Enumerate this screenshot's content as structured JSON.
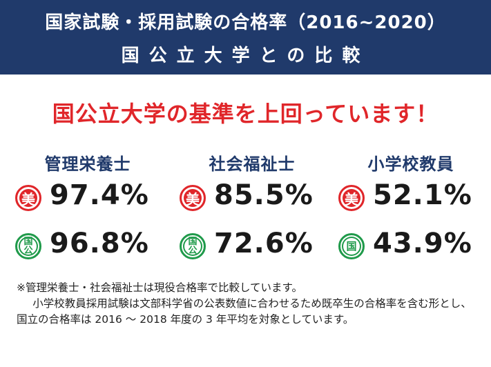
{
  "header": {
    "title_line1": "国家試験・採用試験の合格率（2016~2020）",
    "title_line2": "国公立大学との比較"
  },
  "headline": "国公立大学の基準を上回っています！",
  "colors": {
    "navy": "#203a6b",
    "red": "#e0262a",
    "green": "#1f9a4a"
  },
  "badges": {
    "bi": "美",
    "koku_top": "国",
    "koku_bottom": "公",
    "koku_single": "国"
  },
  "columns": [
    {
      "title": "管理栄養士",
      "bi_value": "97.4%",
      "koku_value": "96.8%"
    },
    {
      "title": "社会福祉士",
      "bi_value": "85.5%",
      "koku_value": "72.6%"
    },
    {
      "title": "小学校教員",
      "bi_value": "52.1%",
      "koku_value": "43.9%"
    }
  ],
  "note": {
    "line1": "※管理栄養士・社会福祉士は現役合格率で比較しています。",
    "line2": "小学校教員採用試験は文部科学省の公表数値に合わせるため既卒生の合格率を含む形とし、国立の合格率は 2016 ～ 2018 年度の 3 年平均を対象としています。"
  }
}
